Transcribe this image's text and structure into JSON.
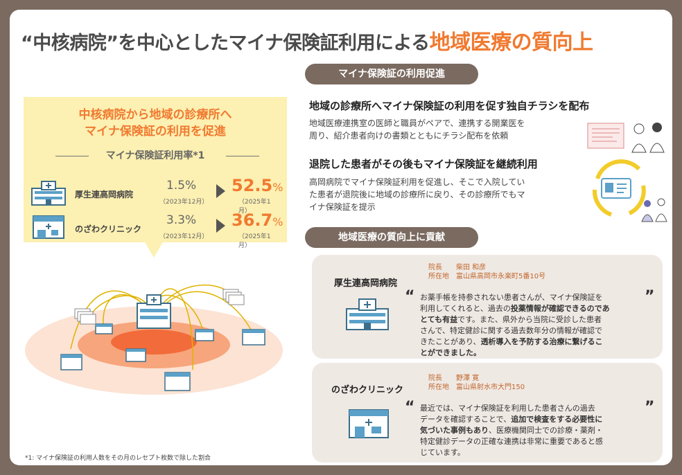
{
  "title": {
    "prefix": "“中核病院”を中心としたマイナ保険証利用による",
    "highlight": "地域医療の質向上"
  },
  "left_panel": {
    "heading_line1": "中核病院から地域の診療所へ",
    "heading_line2": "マイナ保険証の利用を促進",
    "rate_title": "マイナ保険証利用率*1",
    "rows": [
      {
        "name": "厚生連高岡病院",
        "old_value": "1.5%",
        "old_date": "（2023年12月）",
        "new_value": "52.5",
        "new_unit": "%",
        "new_date": "（2025年1月）"
      },
      {
        "name": "のざわクリニック",
        "old_value": "3.3%",
        "old_date": "（2023年12月）",
        "new_value": "36.7",
        "new_unit": "%",
        "new_date": "（2025年1月）"
      }
    ]
  },
  "footnote": "*1: マイナ保険証の利用人数をその月のレセプト枚数で除した割合",
  "section1": {
    "pill": "マイナ保険証の利用促進",
    "item1_title": "地域の診療所へマイナ保険証の利用を促す独自チラシを配布",
    "item1_body_l1": "地域医療連携室の医師と職員がペアで、連携する開業医を",
    "item1_body_l2": "周り、紹介患者向けの書類とともにチラシ配布を依頼",
    "item2_title": "退院した患者がその後もマイナ保険証を継続利用",
    "item2_body_l1": "高岡病院でマイナ保険証利用を促進し、そこで入院してい",
    "item2_body_l2": "た患者が退院後に地域の診療所に戻り、その診療所でもマ",
    "item2_body_l3": "イナ保険証を提示"
  },
  "section2": {
    "pill": "地域医療の質向上に貢献",
    "card1": {
      "name": "厚生連高岡病院",
      "director": "院長　　柴田 和彦",
      "address": "所在地　富山県高岡市永楽町5番10号",
      "q1": "お薬手帳を持参されない患者さんが、マイナ保険証を",
      "q2a": "利用してくれると、過去の",
      "q2b": "投薬情報が確認できるのであ",
      "q3a": "とても有益",
      "q3b": "です。また、県外から当院に受診した患者",
      "q4": "さんで、特定健診に関する過去数年分の情報が確認で",
      "q5a": "きたことがあり、",
      "q5b": "透析導入を予防する治療に繋げるこ",
      "q6": "とができました。"
    },
    "card2": {
      "name": "のざわクリニック",
      "director": "院長　　野澤 寛",
      "address": "所在地　富山県射水市大門150",
      "q1": "最近では、マイナ保険証を利用した患者さんの過去",
      "q2a": "データを確認することで、",
      "q2b": "追加で検査をする必要性に",
      "q3a": "気づいた事例もあり",
      "q3b": "、医療機関同士での診療・薬剤・",
      "q4": "特定健診データの正確な連携は非常に重要であると感",
      "q5": "じています。"
    }
  },
  "colors": {
    "frame": "#7a6a60",
    "accent": "#f07a30",
    "panel": "#fcf0b2",
    "card_bg": "#efe9e4"
  }
}
